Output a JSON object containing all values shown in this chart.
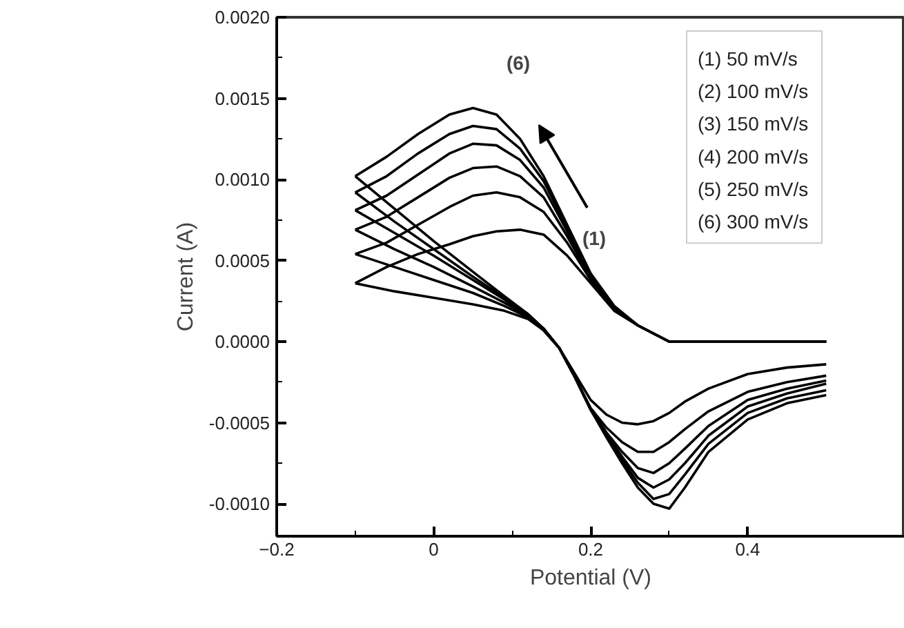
{
  "chart_data": {
    "type": "line",
    "xlabel": "Potential (V)",
    "ylabel": "Current (A)",
    "xlim": [
      -0.2,
      0.6
    ],
    "xticks": [
      -0.2,
      0.0,
      0.2,
      0.4
    ],
    "ylim": [
      -0.0012,
      0.002
    ],
    "yticks": [
      {
        "value": -0.001,
        "label": "-0.0010"
      },
      {
        "value": -0.0005,
        "label": "-0.0005"
      },
      {
        "value": 0,
        "label": "0.0000"
      },
      {
        "value": 0.0005,
        "label": "0.0005"
      },
      {
        "value": 0.001,
        "label": "0.0010"
      },
      {
        "value": 0.0015,
        "label": "0.0015"
      },
      {
        "value": 0.002,
        "label": "0.0020"
      }
    ],
    "grid": false,
    "marker": "none",
    "line_style": "solid",
    "annotations": [
      "(6)",
      "(1)",
      "(1) 50 mV/s",
      "(2) 100 mV/s",
      "(3) 150 mV/s",
      "(4) 200 mV/s",
      "(5) 250 mV/s",
      "(6) 300 mV/s"
    ],
    "series": [
      {
        "color": "#000000",
        "x": [
          -0.1,
          -0.06,
          -0.02,
          0.02,
          0.05,
          0.08,
          0.11,
          0.14,
          0.17,
          0.2,
          0.23,
          0.26,
          0.3,
          0.35,
          0.4,
          0.5
        ],
        "values": [
          0.00036,
          0.00046,
          0.00054,
          0.0006,
          0.00065,
          0.00068,
          0.00069,
          0.00066,
          0.00053,
          0.00036,
          0.00019,
          0.0001,
          0,
          0,
          0,
          0
        ]
      },
      {
        "color": "#000000",
        "x": [
          0.5,
          0.45,
          0.4,
          0.35,
          0.32,
          0.3,
          0.28,
          0.26,
          0.24,
          0.22,
          0.2,
          0.18,
          0.16,
          0.14,
          0.12,
          0.09,
          0.05,
          0,
          -0.05,
          -0.1
        ],
        "values": [
          -0.00014,
          -0.00016,
          -0.0002,
          -0.00029,
          -0.00037,
          -0.00044,
          -0.00049,
          -0.00051,
          -0.0005,
          -0.00045,
          -0.00036,
          -0.0002,
          -4e-05,
          7e-05,
          0.00014,
          0.00019,
          0.00023,
          0.00027,
          0.00031,
          0.00036
        ]
      },
      {
        "color": "#000000",
        "x": [
          -0.1,
          -0.06,
          -0.02,
          0.02,
          0.05,
          0.08,
          0.11,
          0.14,
          0.17,
          0.2,
          0.23,
          0.26,
          0.3,
          0.35,
          0.4,
          0.5
        ],
        "values": [
          0.00054,
          0.00061,
          0.00072,
          0.00083,
          0.0009,
          0.00092,
          0.00089,
          0.0008,
          0.00061,
          0.00038,
          0.0002,
          0.0001,
          0,
          0,
          0,
          0
        ]
      },
      {
        "color": "#000000",
        "x": [
          0.5,
          0.45,
          0.4,
          0.35,
          0.32,
          0.3,
          0.28,
          0.26,
          0.24,
          0.22,
          0.2,
          0.18,
          0.16,
          0.14,
          0.12,
          0.09,
          0.05,
          0,
          -0.05,
          -0.1
        ],
        "values": [
          -0.00021,
          -0.00025,
          -0.00031,
          -0.00043,
          -0.00054,
          -0.00062,
          -0.00068,
          -0.00068,
          -0.00062,
          -0.00053,
          -0.00041,
          -0.00022,
          -4e-05,
          7e-05,
          0.00015,
          0.00022,
          0.0003,
          0.00038,
          0.00046,
          0.00054
        ]
      },
      {
        "color": "#000000",
        "x": [
          -0.1,
          -0.06,
          -0.02,
          0.02,
          0.05,
          0.08,
          0.11,
          0.14,
          0.17,
          0.2,
          0.23,
          0.26,
          0.3,
          0.35,
          0.4,
          0.5
        ],
        "values": [
          0.00069,
          0.00077,
          0.00089,
          0.00101,
          0.00107,
          0.00108,
          0.00102,
          0.00089,
          0.00065,
          0.00039,
          0.0002,
          0.0001,
          0,
          0,
          0,
          0
        ]
      },
      {
        "color": "#000000",
        "x": [
          0.5,
          0.45,
          0.4,
          0.35,
          0.32,
          0.3,
          0.28,
          0.26,
          0.24,
          0.22,
          0.2,
          0.18,
          0.16,
          0.14,
          0.12,
          0.09,
          0.05,
          0,
          -0.05,
          -0.1
        ],
        "values": [
          -0.00024,
          -0.00029,
          -0.00036,
          -0.00052,
          -0.00066,
          -0.00075,
          -0.00081,
          -0.00078,
          -0.00068,
          -0.00056,
          -0.00042,
          -0.00022,
          -4e-05,
          7e-05,
          0.00016,
          0.00024,
          0.00034,
          0.00046,
          0.00057,
          0.00069
        ]
      },
      {
        "color": "#000000",
        "x": [
          -0.1,
          -0.06,
          -0.02,
          0.02,
          0.05,
          0.08,
          0.11,
          0.14,
          0.17,
          0.2,
          0.23,
          0.26,
          0.3,
          0.35,
          0.4,
          0.5
        ],
        "values": [
          0.00081,
          0.0009,
          0.00103,
          0.00116,
          0.00122,
          0.00121,
          0.00112,
          0.00095,
          0.00068,
          0.0004,
          0.00021,
          0.0001,
          0,
          0,
          0,
          0
        ]
      },
      {
        "color": "#000000",
        "x": [
          0.5,
          0.45,
          0.4,
          0.35,
          0.32,
          0.3,
          0.28,
          0.26,
          0.24,
          0.22,
          0.2,
          0.18,
          0.16,
          0.14,
          0.12,
          0.09,
          0.05,
          0,
          -0.05,
          -0.1
        ],
        "values": [
          -0.00026,
          -0.00032,
          -0.0004,
          -0.00058,
          -0.00075,
          -0.00085,
          -0.0009,
          -0.00084,
          -0.00071,
          -0.00057,
          -0.00042,
          -0.00022,
          -4e-05,
          8e-05,
          0.00016,
          0.00026,
          0.00038,
          0.00053,
          0.00067,
          0.00081
        ]
      },
      {
        "color": "#000000",
        "x": [
          -0.1,
          -0.06,
          -0.02,
          0.02,
          0.05,
          0.08,
          0.11,
          0.14,
          0.17,
          0.2,
          0.23,
          0.26,
          0.3,
          0.35,
          0.4,
          0.5
        ],
        "values": [
          0.00092,
          0.00102,
          0.00116,
          0.00128,
          0.00133,
          0.00131,
          0.00119,
          0.00099,
          0.0007,
          0.00041,
          0.00021,
          0.0001,
          0,
          0,
          0,
          0
        ]
      },
      {
        "color": "#000000",
        "x": [
          0.5,
          0.45,
          0.4,
          0.35,
          0.32,
          0.3,
          0.28,
          0.26,
          0.24,
          0.22,
          0.2,
          0.18,
          0.16,
          0.14,
          0.12,
          0.09,
          0.05,
          0,
          -0.05,
          -0.1
        ],
        "values": [
          -0.0003,
          -0.00035,
          -0.00044,
          -0.00063,
          -0.00082,
          -0.00094,
          -0.00097,
          -0.00087,
          -0.00073,
          -0.00058,
          -0.00042,
          -0.00022,
          -4e-05,
          8e-05,
          0.00017,
          0.00027,
          0.0004,
          0.00057,
          0.00074,
          0.00092
        ]
      },
      {
        "color": "#000000",
        "x": [
          -0.1,
          -0.06,
          -0.02,
          0.02,
          0.05,
          0.08,
          0.11,
          0.14,
          0.17,
          0.2,
          0.23,
          0.26,
          0.3,
          0.35,
          0.4,
          0.5
        ],
        "values": [
          0.00102,
          0.00114,
          0.00128,
          0.0014,
          0.00144,
          0.0014,
          0.00125,
          0.00102,
          0.00072,
          0.00042,
          0.00022,
          0.0001,
          0,
          0,
          0,
          0
        ]
      },
      {
        "color": "#000000",
        "x": [
          0.5,
          0.45,
          0.4,
          0.35,
          0.32,
          0.3,
          0.28,
          0.26,
          0.24,
          0.22,
          0.2,
          0.18,
          0.16,
          0.14,
          0.12,
          0.09,
          0.05,
          0,
          -0.05,
          -0.1
        ],
        "values": [
          -0.00033,
          -0.00038,
          -0.00048,
          -0.00068,
          -0.0009,
          -0.00103,
          -0.001,
          -0.0009,
          -0.00075,
          -0.00059,
          -0.00042,
          -0.00022,
          -4e-05,
          8e-05,
          0.00017,
          0.00028,
          0.00043,
          0.00062,
          0.00082,
          0.00102
        ]
      }
    ]
  }
}
